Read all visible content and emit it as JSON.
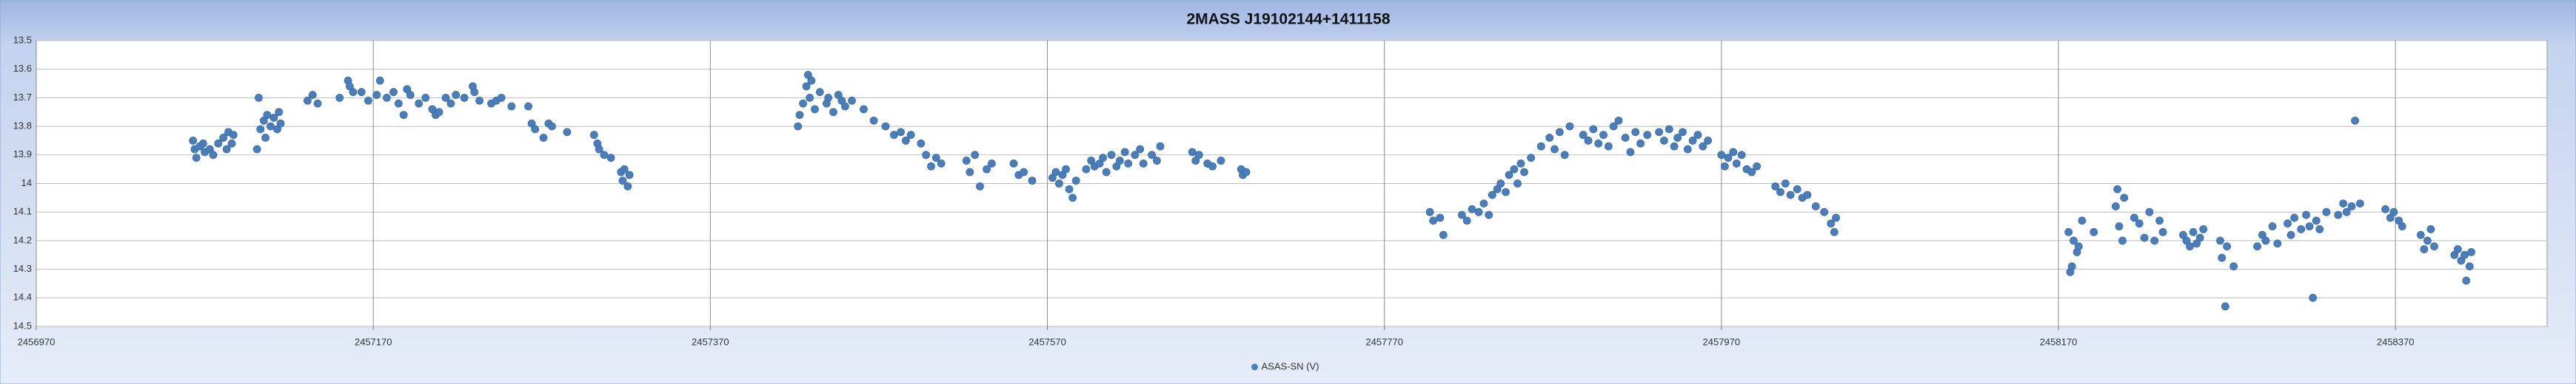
{
  "chart_data": {
    "type": "scatter",
    "title": "2MASS J19102144+1411158",
    "xlim": [
      2456970,
      2458460
    ],
    "xticks": [
      2456970,
      2457170,
      2457370,
      2457570,
      2457770,
      2457970,
      2458170,
      2458370
    ],
    "ylim": [
      14.5,
      13.5
    ],
    "yticks": [
      13.5,
      13.6,
      13.7,
      13.8,
      13.9,
      14,
      14.1,
      14.2,
      14.3,
      14.4,
      14.5
    ],
    "grid": true,
    "legend": "bottom",
    "series": [
      {
        "name": "ASAS-SN (V)",
        "color": "#4a7ebb",
        "x": [
          2457063,
          2457064,
          2457065,
          2457067,
          2457069,
          2457070,
          2457073,
          2457075,
          2457078,
          2457081,
          2457083,
          2457084,
          2457086,
          2457087,
          2457101,
          2457102,
          2457103,
          2457105,
          2457106,
          2457107,
          2457109,
          2457111,
          2457113,
          2457114,
          2457115,
          2457131,
          2457134,
          2457137,
          2457150,
          2457155,
          2457156,
          2457158,
          2457163,
          2457167,
          2457172,
          2457174,
          2457178,
          2457182,
          2457185,
          2457188,
          2457190,
          2457192,
          2457197,
          2457201,
          2457205,
          2457207,
          2457209,
          2457213,
          2457216,
          2457219,
          2457224,
          2457229,
          2457230,
          2457233,
          2457240,
          2457243,
          2457246,
          2457252,
          2457262,
          2457264,
          2457266,
          2457271,
          2457274,
          2457276,
          2457285,
          2457301,
          2457303,
          2457304,
          2457307,
          2457311,
          2457317,
          2457318,
          2457319,
          2457321,
          2457322,
          2457422,
          2457423,
          2457425,
          2457427,
          2457428,
          2457429,
          2457430,
          2457432,
          2457435,
          2457439,
          2457440,
          2457443,
          2457446,
          2457448,
          2457450,
          2457454,
          2457461,
          2457467,
          2457474,
          2457479,
          2457483,
          2457486,
          2457489,
          2457495,
          2457498,
          2457501,
          2457504,
          2457507,
          2457522,
          2457524,
          2457527,
          2457530,
          2457534,
          2457537,
          2457550,
          2457553,
          2457556,
          2457561,
          2457573,
          2457575,
          2457577,
          2457579,
          2457581,
          2457583,
          2457585,
          2457587,
          2457593,
          2457596,
          2457598,
          2457601,
          2457603,
          2457605,
          2457608,
          2457611,
          2457613,
          2457616,
          2457618,
          2457622,
          2457625,
          2457627,
          2457632,
          2457635,
          2457637,
          2457656,
          2457658,
          2457660,
          2457665,
          2457668,
          2457673,
          2457685,
          2457686,
          2457688,
          2457797,
          2457799,
          2457803,
          2457805,
          2457816,
          2457819,
          2457822,
          2457826,
          2457829,
          2457832,
          2457834,
          2457837,
          2457839,
          2457842,
          2457844,
          2457847,
          2457849,
          2457851,
          2457853,
          2457857,
          2457863,
          2457868,
          2457871,
          2457874,
          2457877,
          2457880,
          2457888,
          2457891,
          2457894,
          2457897,
          2457900,
          2457903,
          2457906,
          2457909,
          2457913,
          2457916,
          2457919,
          2457922,
          2457926,
          2457933,
          2457936,
          2457939,
          2457942,
          2457944,
          2457947,
          2457950,
          2457953,
          2457956,
          2457959,
          2457962,
          2457970,
          2457972,
          2457974,
          2457977,
          2457979,
          2457982,
          2457985,
          2457988,
          2457991,
          2458002,
          2458005,
          2458008,
          2458011,
          2458015,
          2458018,
          2458021,
          2458026,
          2458031,
          2458035,
          2458037,
          2458038,
          2458176,
          2458177,
          2458178,
          2458179,
          2458181,
          2458182,
          2458184,
          2458191,
          2458204,
          2458205,
          2458206,
          2458208,
          2458209,
          2458215,
          2458218,
          2458221,
          2458224,
          2458227,
          2458230,
          2458232,
          2458244,
          2458246,
          2458248,
          2458250,
          2458252,
          2458254,
          2458256,
          2458266,
          2458267,
          2458269,
          2458270,
          2458274,
          2458288,
          2458291,
          2458293,
          2458297,
          2458300,
          2458306,
          2458308,
          2458310,
          2458314,
          2458317,
          2458319,
          2458321,
          2458323,
          2458325,
          2458329,
          2458336,
          2458339,
          2458341,
          2458344,
          2458346,
          2458349,
          2458364,
          2458367,
          2458369,
          2458372,
          2458374,
          2458385,
          2458387,
          2458389,
          2458391,
          2458393,
          2458405,
          2458407,
          2458409,
          2458411,
          2458412,
          2458414,
          2458415
        ],
        "values": [
          13.85,
          13.88,
          13.91,
          13.87,
          13.86,
          13.89,
          13.88,
          13.9,
          13.86,
          13.84,
          13.88,
          13.82,
          13.86,
          13.83,
          13.88,
          13.7,
          13.81,
          13.78,
          13.84,
          13.76,
          13.8,
          13.77,
          13.81,
          13.75,
          13.79,
          13.71,
          13.69,
          13.72,
          13.7,
          13.64,
          13.66,
          13.68,
          13.68,
          13.71,
          13.69,
          13.64,
          13.7,
          13.68,
          13.72,
          13.76,
          13.67,
          13.69,
          13.72,
          13.7,
          13.74,
          13.76,
          13.75,
          13.7,
          13.72,
          13.69,
          13.7,
          13.66,
          13.68,
          13.71,
          13.72,
          13.71,
          13.7,
          13.73,
          13.73,
          13.79,
          13.81,
          13.84,
          13.79,
          13.8,
          13.82,
          13.83,
          13.86,
          13.88,
          13.9,
          13.91,
          13.96,
          13.99,
          13.95,
          14.01,
          13.97,
          13.8,
          13.76,
          13.72,
          13.66,
          13.62,
          13.7,
          13.64,
          13.74,
          13.68,
          13.72,
          13.7,
          13.75,
          13.69,
          13.71,
          13.73,
          13.71,
          13.74,
          13.78,
          13.8,
          13.83,
          13.82,
          13.85,
          13.83,
          13.86,
          13.9,
          13.94,
          13.91,
          13.93,
          13.92,
          13.96,
          13.9,
          14.01,
          13.95,
          13.93,
          13.93,
          13.97,
          13.96,
          13.99,
          13.98,
          13.96,
          14.0,
          13.97,
          13.95,
          14.02,
          14.05,
          13.99,
          13.95,
          13.92,
          13.94,
          13.93,
          13.91,
          13.96,
          13.9,
          13.94,
          13.92,
          13.89,
          13.93,
          13.9,
          13.88,
          13.93,
          13.9,
          13.92,
          13.87,
          13.89,
          13.92,
          13.9,
          13.93,
          13.94,
          13.92,
          13.95,
          13.97,
          13.96,
          14.1,
          14.13,
          14.12,
          14.18,
          14.11,
          14.13,
          14.09,
          14.1,
          14.07,
          14.11,
          14.04,
          14.02,
          14.0,
          14.03,
          13.97,
          13.95,
          14.0,
          13.93,
          13.96,
          13.91,
          13.87,
          13.84,
          13.88,
          13.82,
          13.9,
          13.8,
          13.83,
          13.85,
          13.81,
          13.86,
          13.83,
          13.87,
          13.8,
          13.78,
          13.84,
          13.89,
          13.82,
          13.86,
          13.83,
          13.82,
          13.85,
          13.81,
          13.87,
          13.84,
          13.82,
          13.88,
          13.85,
          13.83,
          13.87,
          13.85,
          13.9,
          13.94,
          13.91,
          13.89,
          13.93,
          13.9,
          13.95,
          13.96,
          13.94,
          14.01,
          14.03,
          14.0,
          14.04,
          14.02,
          14.05,
          14.04,
          14.08,
          14.1,
          14.14,
          14.17,
          14.12,
          14.17,
          14.31,
          14.29,
          14.2,
          14.24,
          14.22,
          14.13,
          14.17,
          14.08,
          14.02,
          14.15,
          14.2,
          14.05,
          14.12,
          14.14,
          14.19,
          14.1,
          14.2,
          14.13,
          14.17,
          14.18,
          14.2,
          14.22,
          14.17,
          14.21,
          14.19,
          14.16,
          14.2,
          14.26,
          14.43,
          14.22,
          14.29,
          14.22,
          14.18,
          14.2,
          14.15,
          14.21,
          14.14,
          14.18,
          14.12,
          14.16,
          14.11,
          14.15,
          14.4,
          14.13,
          14.16,
          14.1,
          14.11,
          14.07,
          14.1,
          14.08,
          13.78,
          14.07,
          14.09,
          14.12,
          14.1,
          14.13,
          14.15,
          14.18,
          14.23,
          14.2,
          14.16,
          14.22,
          14.25,
          14.23,
          14.27,
          14.25,
          14.34,
          14.29,
          14.24
        ]
      }
    ]
  }
}
